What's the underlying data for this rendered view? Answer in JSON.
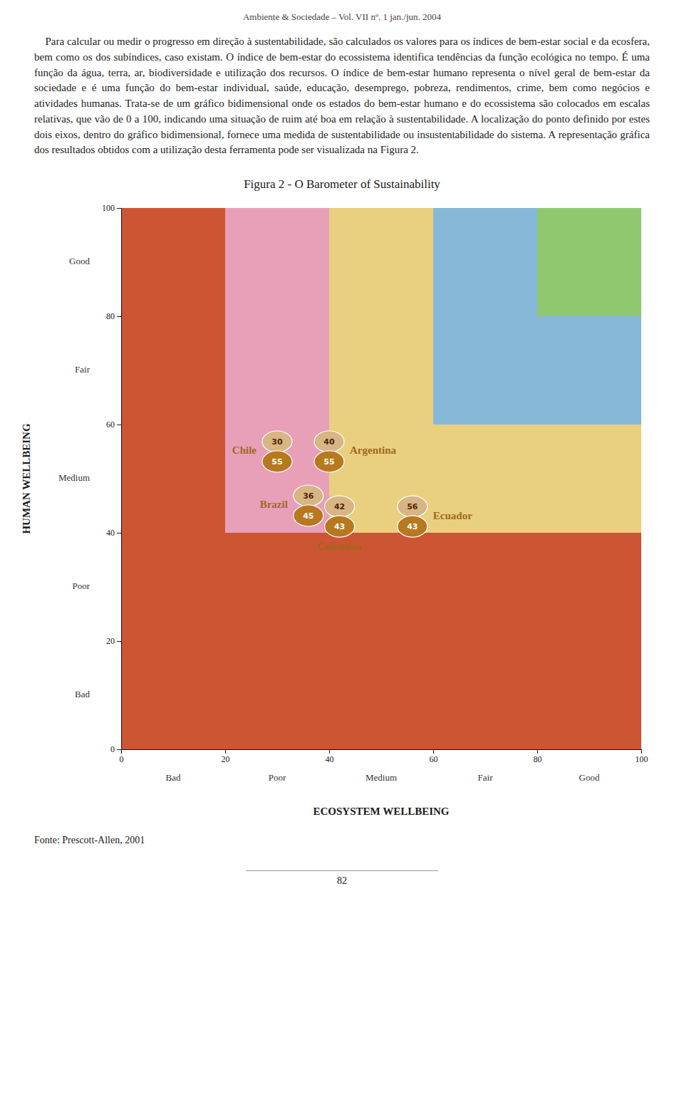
{
  "chart_data": {
    "type": "scatter",
    "title": "Figura 2 - O Barometer of Sustainability",
    "header": "Ambiente & Sociedade – Vol. VII nº. 1 jan./jun. 2004",
    "body_text": "    Para calcular ou medir o progresso em direção à sustentabilidade, são calculados os valores para os índices de bem-estar social e da ecosfera, bem como os dos subíndices, caso existam. O índice de bem-estar do ecossistema identifica tendências da função ecológica no tempo. É uma função da água, terra, ar, biodiversidade e utilização dos recursos. O índice de bem-estar humano representa o nível geral de bem-estar da sociedade e é uma função do bem-estar individual, saúde, educação, desemprego, pobreza, rendimentos, crime, bem como negócios e atividades humanas. Trata-se de um gráfico bidimensional onde os estados do bem-estar humano e do ecossistema são colocados em escalas relativas, que vão de 0 a 100, indicando uma situação de ruim até boa em relação à sustentabilidade. A localização do ponto definido por estes dois eixos, dentro do gráfico bidimensional, fornece uma medida de sustentabilidade ou insustentabilidade do sistema. A representação gráfica dos resultados obtidos com a utilização desta ferramenta pode ser visualizada na Figura 2.",
    "footer": "Fonte: Prescott-Allen, 2001",
    "page_number": "82",
    "xlabel": "ECOSYSTEM WELLBEING",
    "ylabel": "HUMAN WELLBEING",
    "xlim": [
      0,
      100
    ],
    "ylim": [
      0,
      100
    ],
    "xticks": [
      0,
      20,
      40,
      60,
      80,
      100
    ],
    "yticks": [
      0,
      20,
      40,
      60,
      80,
      100
    ],
    "x_category_labels": [
      "Bad",
      "Poor",
      "Medium",
      "Fair",
      "Good"
    ],
    "x_category_positions": [
      10,
      30,
      50,
      70,
      90
    ],
    "y_category_labels": [
      "Bad",
      "Poor",
      "Medium",
      "Fair",
      "Good"
    ],
    "y_category_positions": [
      10,
      30,
      50,
      70,
      90
    ],
    "regions": [
      {
        "x0": 0,
        "x1": 20,
        "y0": 0,
        "y1": 100,
        "color": "#cc5533"
      },
      {
        "x0": 20,
        "x1": 100,
        "y0": 0,
        "y1": 20,
        "color": "#cc5533"
      },
      {
        "x0": 20,
        "x1": 40,
        "y0": 20,
        "y1": 40,
        "color": "#cc5533"
      },
      {
        "x0": 40,
        "x1": 100,
        "y0": 20,
        "y1": 40,
        "color": "#cc5533"
      },
      {
        "x0": 20,
        "x1": 40,
        "y0": 40,
        "y1": 100,
        "color": "#e8a0b8"
      },
      {
        "x0": 40,
        "x1": 60,
        "y0": 40,
        "y1": 100,
        "color": "#e8d080"
      },
      {
        "x0": 60,
        "x1": 80,
        "y0": 40,
        "y1": 60,
        "color": "#e8d080"
      },
      {
        "x0": 80,
        "x1": 100,
        "y0": 40,
        "y1": 60,
        "color": "#e8d080"
      },
      {
        "x0": 60,
        "x1": 80,
        "y0": 60,
        "y1": 100,
        "color": "#88b8d8"
      },
      {
        "x0": 80,
        "x1": 100,
        "y0": 60,
        "y1": 80,
        "color": "#88b8d8"
      },
      {
        "x0": 80,
        "x1": 100,
        "y0": 80,
        "y1": 100,
        "color": "#90c870"
      }
    ],
    "labels": [
      "Chile",
      "Argentina",
      "Brazil",
      "Colombia",
      "Ecuador"
    ],
    "x": [
      30,
      40,
      36,
      42,
      56
    ],
    "values": [
      55,
      55,
      45,
      43,
      43
    ],
    "color": "#b87820",
    "data_labels": true,
    "grid": false
  }
}
